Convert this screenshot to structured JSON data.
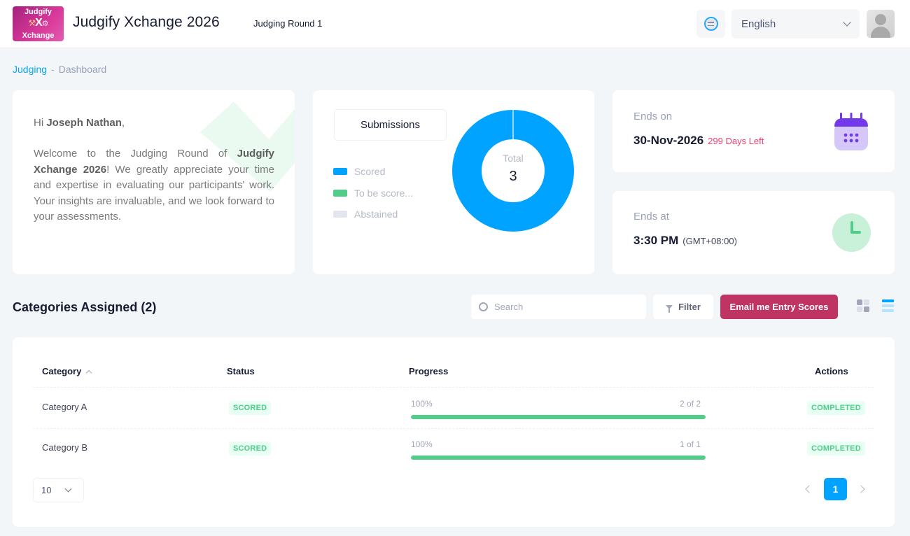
{
  "header": {
    "logo": {
      "line1": "Judgify",
      "line2": "Xchange",
      "mark": "X"
    },
    "app_title": "Judgify Xchange 2026",
    "round": "Judging Round 1",
    "notification_icon": "notification-icon",
    "language": {
      "selected": "English"
    },
    "avatar_icon": "user-avatar"
  },
  "breadcrumb": {
    "items": [
      "Judging",
      "Dashboard"
    ],
    "separator": "-"
  },
  "welcome": {
    "greeting_prefix": "Hi ",
    "user_name": "Joseph Nathan",
    "greeting_suffix": ",",
    "message_prefix": "Welcome to the Judging Round of ",
    "event_name": "Judgify Xchange 2026",
    "message_suffix": "! We greatly appreciate your time and expertise in evaluating our participants' work. Your insights are invaluable, and we look forward to your assessments."
  },
  "submissions": {
    "tab_label": "Submissions",
    "total_label": "Total",
    "total_value": "3",
    "legend": [
      {
        "label": "Scored",
        "value": 3,
        "color": "#00a3ff"
      },
      {
        "label": "To be score...",
        "value": 0,
        "color": "#50cd89"
      },
      {
        "label": "Abstained",
        "value": 0,
        "color": "#e4e6ef"
      }
    ]
  },
  "ends_on": {
    "label": "Ends on",
    "date": "30-Nov-2026",
    "days_left": "299 Days Left",
    "icon": "calendar-icon"
  },
  "ends_at": {
    "label": "Ends at",
    "time": "3:30 PM",
    "timezone": "(GMT+08:00)",
    "icon": "clock-icon"
  },
  "categories": {
    "title": "Categories Assigned (2)",
    "search_placeholder": "Search",
    "filter_label": "Filter",
    "email_label": "Email me Entry Scores",
    "columns": [
      "Category",
      "Status",
      "Progress",
      "Actions"
    ],
    "rows": [
      {
        "category": "Category A",
        "status": "SCORED",
        "progress_label": "100%",
        "progress": 1.0,
        "count": "2 of 2",
        "action": "COMPLETED"
      },
      {
        "category": "Category B",
        "status": "SCORED",
        "progress_label": "100%",
        "progress": 1.0,
        "count": "1 of 1",
        "action": "COMPLETED"
      }
    ],
    "page_size": "10",
    "current_page": "1"
  },
  "colors": {
    "accent": "#00a3ff",
    "primary_button": "#c03463",
    "success": "#50cd89",
    "danger": "#f1416c"
  }
}
